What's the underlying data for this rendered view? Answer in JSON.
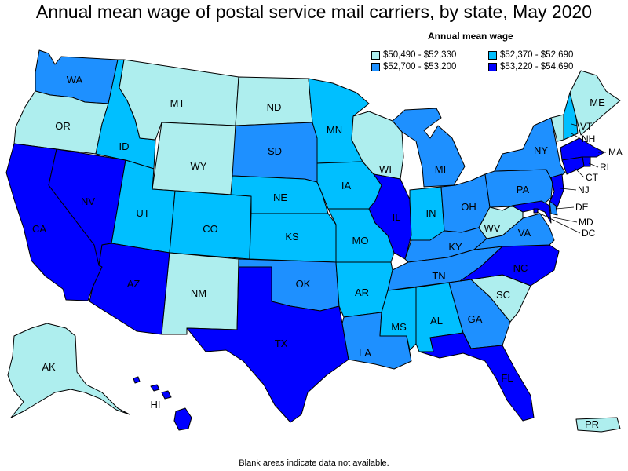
{
  "title": "Annual mean wage of postal service mail carriers, by state, May 2020",
  "legend": {
    "title": "Annual mean wage",
    "items": [
      {
        "range": "$50,490 - $52,330",
        "color": "#aeeeee"
      },
      {
        "range": "$52,370 - $52,690",
        "color": "#00bfff"
      },
      {
        "range": "$52,700 - $53,200",
        "color": "#1e90ff"
      },
      {
        "range": "$53,220 - $54,690",
        "color": "#0000ff"
      }
    ]
  },
  "footnote": "Blank areas indicate data not available.",
  "states": [
    {
      "abbr": "WA",
      "tier": 2
    },
    {
      "abbr": "OR",
      "tier": 0
    },
    {
      "abbr": "CA",
      "tier": 3
    },
    {
      "abbr": "NV",
      "tier": 3
    },
    {
      "abbr": "ID",
      "tier": 1
    },
    {
      "abbr": "MT",
      "tier": 0
    },
    {
      "abbr": "WY",
      "tier": 0
    },
    {
      "abbr": "UT",
      "tier": 1
    },
    {
      "abbr": "AZ",
      "tier": 3
    },
    {
      "abbr": "CO",
      "tier": 1
    },
    {
      "abbr": "NM",
      "tier": 0
    },
    {
      "abbr": "ND",
      "tier": 0
    },
    {
      "abbr": "SD",
      "tier": 2
    },
    {
      "abbr": "NE",
      "tier": 1
    },
    {
      "abbr": "KS",
      "tier": 1
    },
    {
      "abbr": "OK",
      "tier": 2
    },
    {
      "abbr": "TX",
      "tier": 3
    },
    {
      "abbr": "MN",
      "tier": 1
    },
    {
      "abbr": "IA",
      "tier": 1
    },
    {
      "abbr": "MO",
      "tier": 1
    },
    {
      "abbr": "AR",
      "tier": 1
    },
    {
      "abbr": "LA",
      "tier": 2
    },
    {
      "abbr": "WI",
      "tier": 0
    },
    {
      "abbr": "IL",
      "tier": 3
    },
    {
      "abbr": "MI",
      "tier": 2
    },
    {
      "abbr": "IN",
      "tier": 1
    },
    {
      "abbr": "OH",
      "tier": 2
    },
    {
      "abbr": "KY",
      "tier": 2
    },
    {
      "abbr": "TN",
      "tier": 2
    },
    {
      "abbr": "MS",
      "tier": 1
    },
    {
      "abbr": "AL",
      "tier": 1
    },
    {
      "abbr": "GA",
      "tier": 2
    },
    {
      "abbr": "FL",
      "tier": 3
    },
    {
      "abbr": "SC",
      "tier": 0
    },
    {
      "abbr": "NC",
      "tier": 3
    },
    {
      "abbr": "VA",
      "tier": 2
    },
    {
      "abbr": "WV",
      "tier": 0
    },
    {
      "abbr": "PA",
      "tier": 2
    },
    {
      "abbr": "NY",
      "tier": 2
    },
    {
      "abbr": "VT",
      "tier": 0
    },
    {
      "abbr": "NH",
      "tier": 1
    },
    {
      "abbr": "ME",
      "tier": 0
    },
    {
      "abbr": "MA",
      "tier": 3
    },
    {
      "abbr": "RI",
      "tier": 3
    },
    {
      "abbr": "CT",
      "tier": 3
    },
    {
      "abbr": "NJ",
      "tier": 3
    },
    {
      "abbr": "DE",
      "tier": 2
    },
    {
      "abbr": "MD",
      "tier": 3
    },
    {
      "abbr": "DC",
      "tier": 3
    },
    {
      "abbr": "AK",
      "tier": 0
    },
    {
      "abbr": "HI",
      "tier": 3
    },
    {
      "abbr": "PR",
      "tier": 0
    }
  ]
}
